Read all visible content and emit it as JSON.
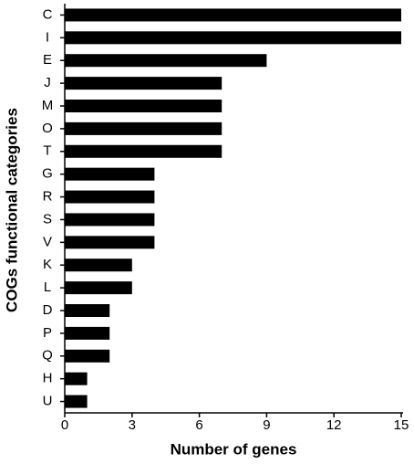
{
  "chart_data": {
    "type": "bar",
    "orientation": "horizontal",
    "xlabel": "Number of genes",
    "ylabel": "COGs functional categories",
    "categories": [
      "C",
      "I",
      "E",
      "J",
      "M",
      "O",
      "T",
      "G",
      "R",
      "S",
      "V",
      "K",
      "L",
      "D",
      "P",
      "Q",
      "H",
      "U"
    ],
    "values": [
      15,
      15,
      9,
      7,
      7,
      7,
      7,
      4,
      4,
      4,
      4,
      3,
      3,
      2,
      2,
      2,
      1,
      1
    ],
    "color": "#000000",
    "xlim": [
      0,
      15
    ],
    "xticks": [
      0,
      3,
      6,
      9,
      12,
      15
    ],
    "grid": false
  }
}
